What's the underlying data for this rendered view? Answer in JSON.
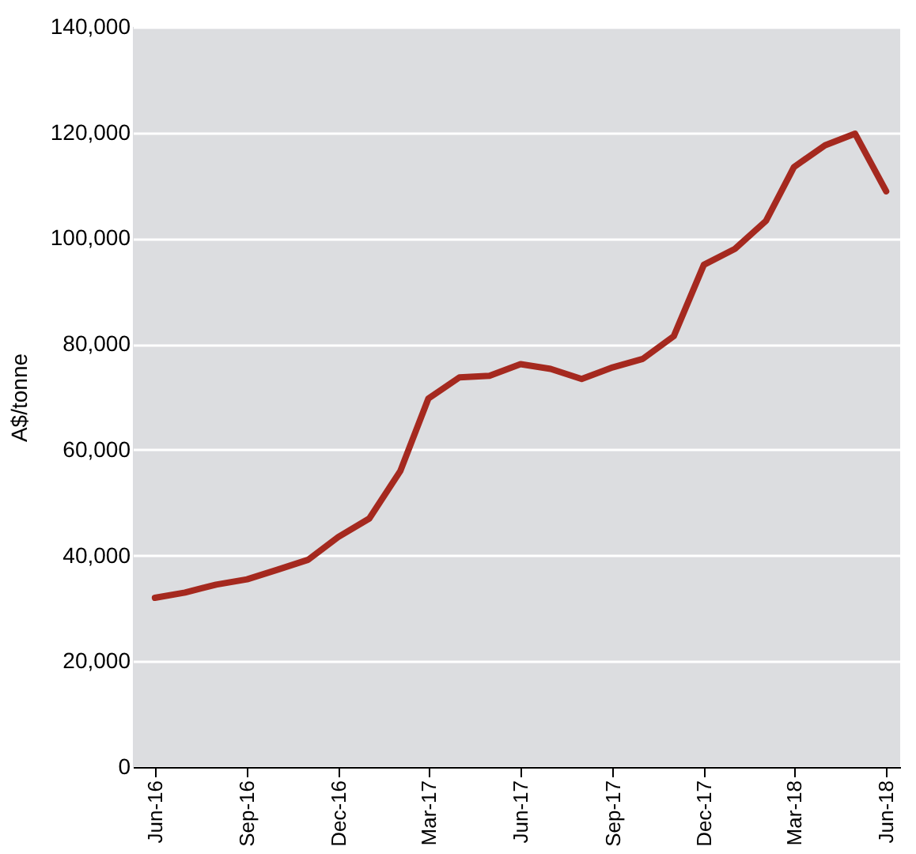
{
  "chart_data": {
    "type": "line",
    "ylabel": "A$/tonne",
    "x": [
      "2016-06",
      "2016-07",
      "2016-08",
      "2016-09",
      "2016-10",
      "2016-11",
      "2016-12",
      "2017-01",
      "2017-02",
      "2017-03",
      "2017-04",
      "2017-05",
      "2017-06",
      "2017-07",
      "2017-08",
      "2017-09",
      "2017-10",
      "2017-11",
      "2017-12",
      "2018-01",
      "2018-02",
      "2018-03",
      "2018-04",
      "2018-05",
      "2018-06"
    ],
    "series": [
      {
        "color": "#a5291f",
        "values": [
          32000,
          33000,
          34500,
          35500,
          37300,
          39200,
          43500,
          47000,
          56000,
          69700,
          73700,
          74000,
          76200,
          75300,
          73400,
          75600,
          77200,
          81500,
          95000,
          98000,
          103300,
          113500,
          117600,
          119800,
          108900
        ]
      }
    ],
    "xlim": [
      "2016-05-10",
      "2018-06-15"
    ],
    "xticks": [
      {
        "value": "2016-06",
        "label": "Jun-16"
      },
      {
        "value": "2016-09",
        "label": "Sep-16"
      },
      {
        "value": "2016-12",
        "label": "Dec-16"
      },
      {
        "value": "2017-03",
        "label": "Mar-17"
      },
      {
        "value": "2017-06",
        "label": "Jun-17"
      },
      {
        "value": "2017-09",
        "label": "Sep-17"
      },
      {
        "value": "2017-12",
        "label": "Dec-17"
      },
      {
        "value": "2018-03",
        "label": "Mar-18"
      },
      {
        "value": "2018-06",
        "label": "Jun-18"
      }
    ],
    "ylim": [
      0,
      140000
    ],
    "yticks": [
      0,
      {
        "value": 20000,
        "label": "20,000"
      },
      {
        "value": 40000,
        "label": "40,000"
      },
      {
        "value": 60000,
        "label": "60,000"
      },
      {
        "value": 80000,
        "label": "80,000"
      },
      {
        "value": 100000,
        "label": "100,000"
      },
      {
        "value": 120000,
        "label": "120,000"
      },
      {
        "value": 140000,
        "label": "140,000"
      }
    ],
    "grid": "y",
    "legend": false,
    "marker": "none",
    "line_style": "solid"
  }
}
